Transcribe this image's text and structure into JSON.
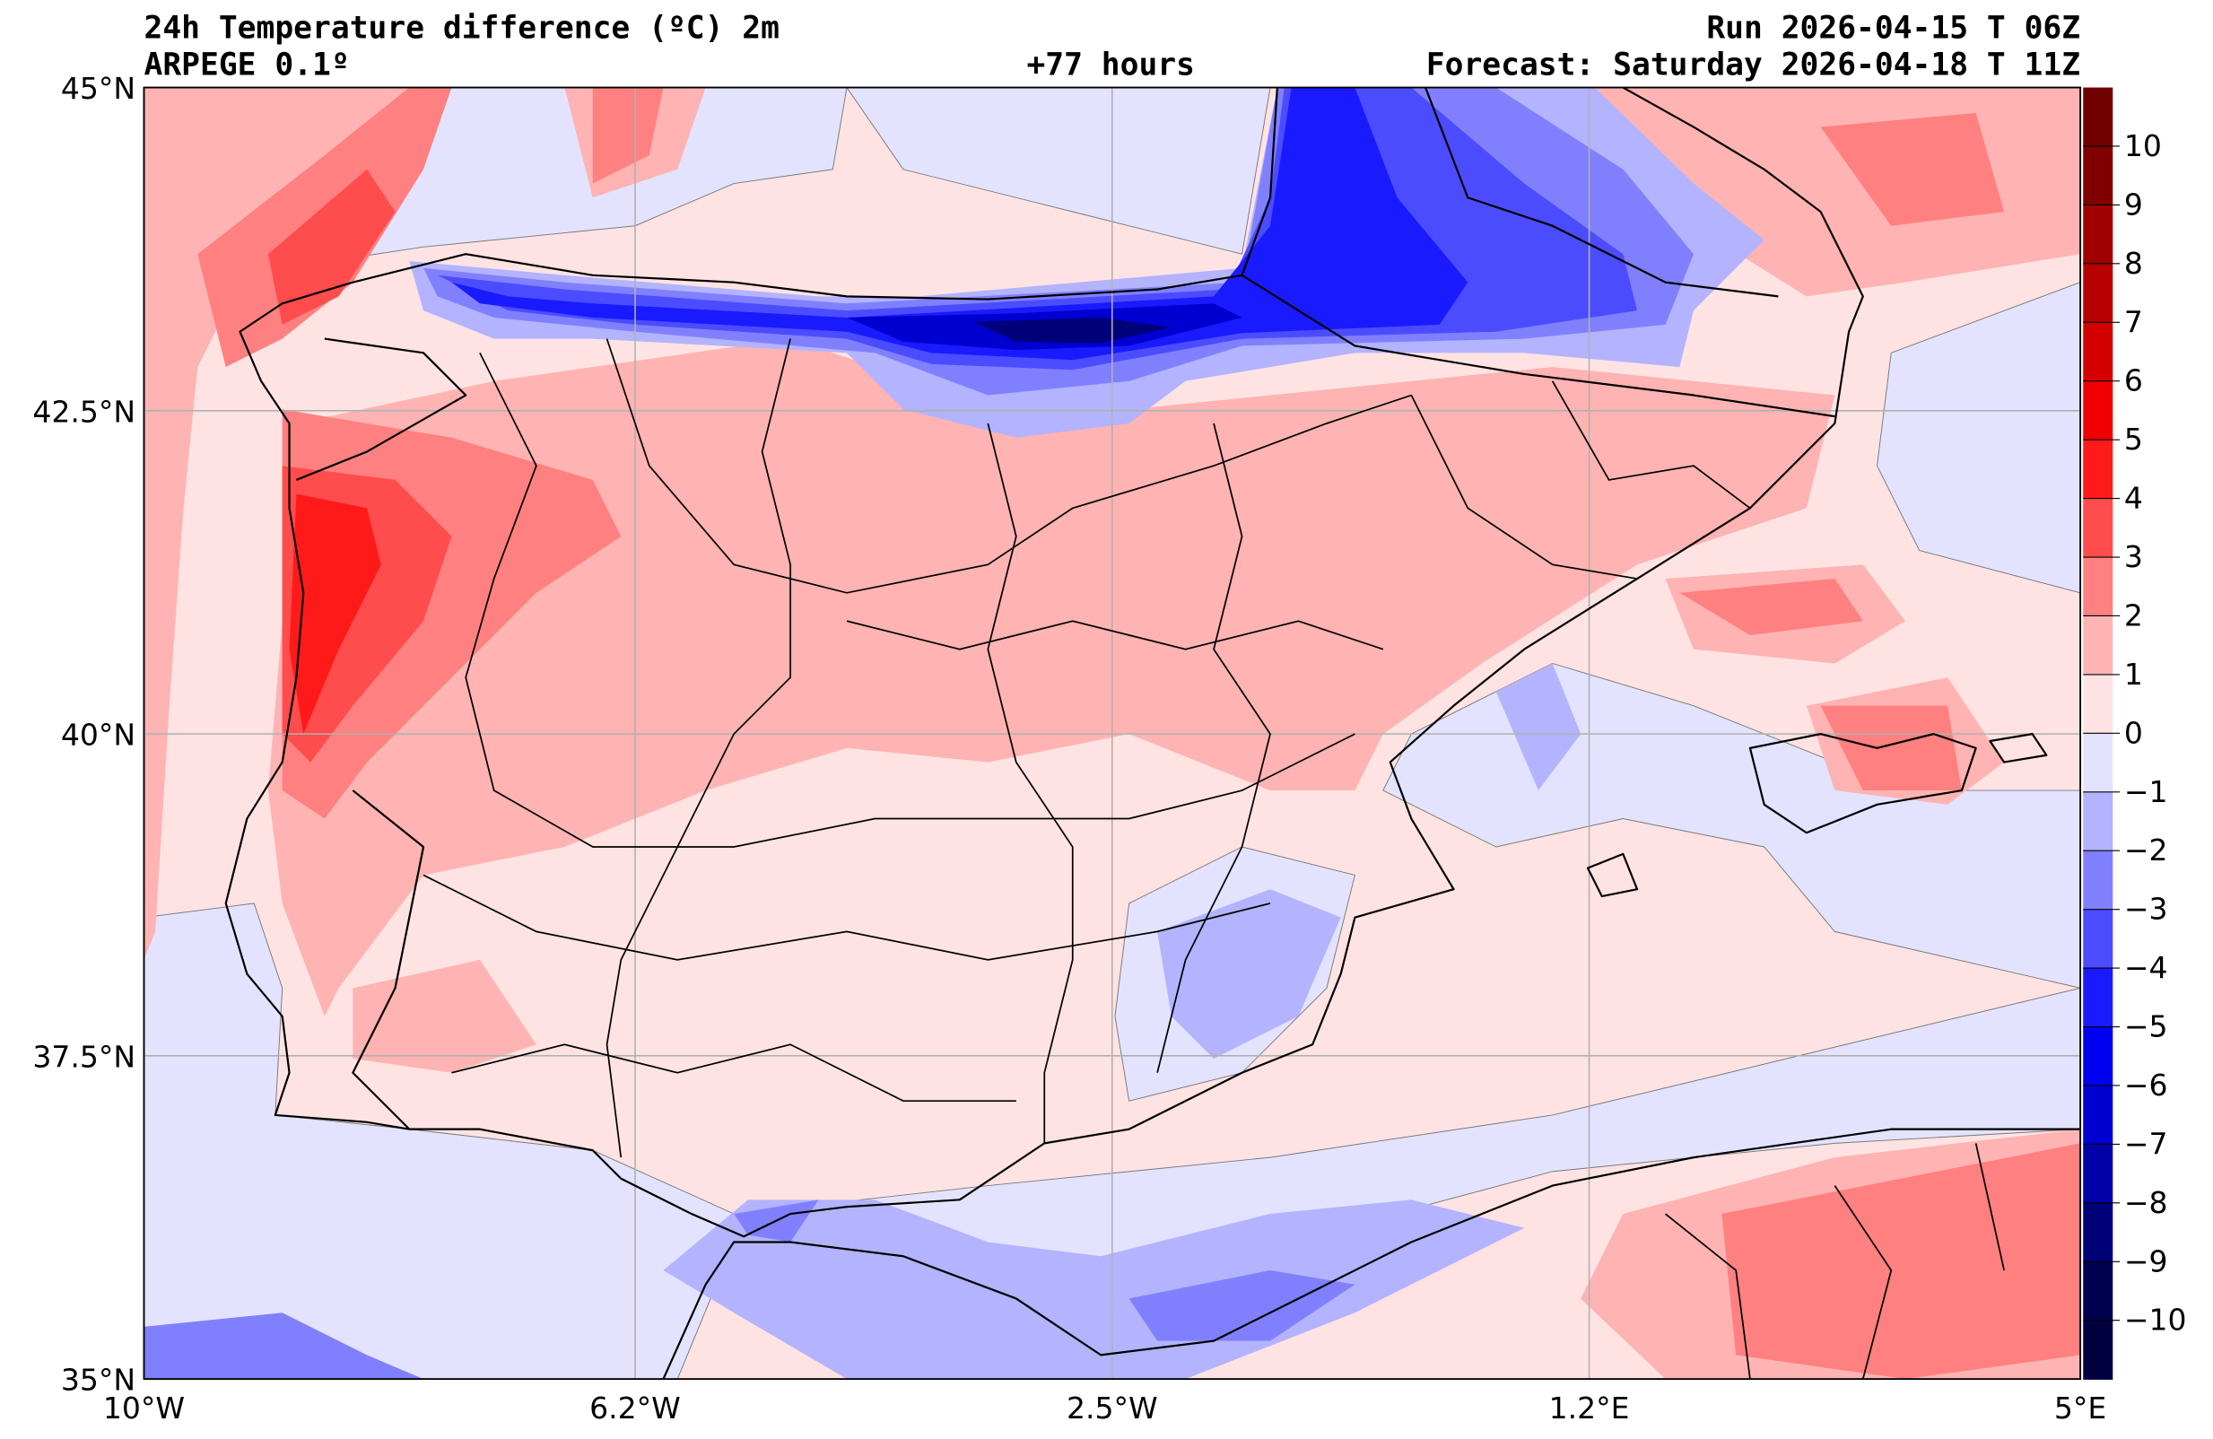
{
  "header": {
    "title": "24h Temperature difference (ºC) 2m",
    "model": "ARPEGE 0.1º",
    "lead_time": "+77 hours",
    "run": "Run 2026-04-15 T 06Z",
    "forecast": "Forecast: Saturday 2026-04-18 T 11Z"
  },
  "axes": {
    "lat_ticks": [
      "45°N",
      "42.5°N",
      "40°N",
      "37.5°N",
      "35°N"
    ],
    "lon_ticks": [
      "10°W",
      "6.2°W",
      "2.5°W",
      "1.2°E",
      "5°E"
    ]
  },
  "colorbar": {
    "ticks": [
      "10",
      "9",
      "8",
      "7",
      "6",
      "5",
      "4",
      "3",
      "2",
      "1",
      "0",
      "−1",
      "−2",
      "−3",
      "−4",
      "−5",
      "−6",
      "−7",
      "−8",
      "−9",
      "−10"
    ],
    "colors": [
      "#700000",
      "#800000",
      "#a00000",
      "#b80000",
      "#d40000",
      "#f00000",
      "#ff1a1a",
      "#ff4c4c",
      "#ff8080",
      "#ffb3b3",
      "#ffe3e3",
      "#e3e3ff",
      "#b3b3ff",
      "#8080ff",
      "#4c4cff",
      "#1a1aff",
      "#0000f0",
      "#0000d0",
      "#0000a8",
      "#000078",
      "#000050",
      "#000040"
    ]
  }
}
